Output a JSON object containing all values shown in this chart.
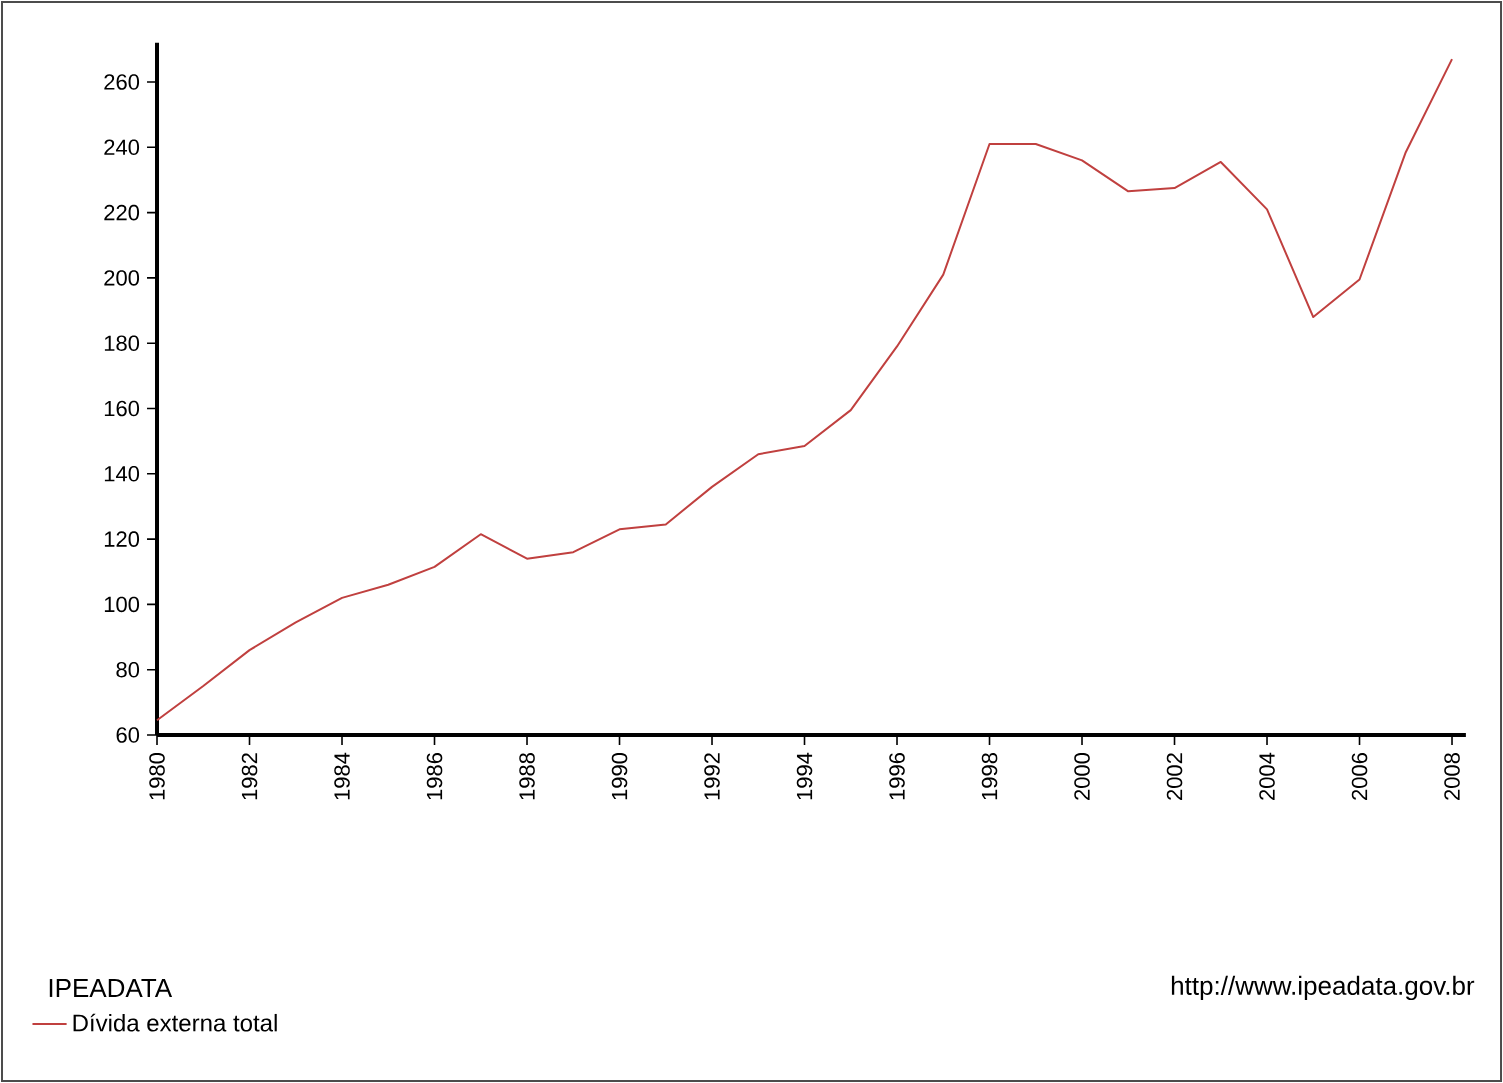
{
  "chart_data": {
    "type": "line",
    "x": [
      1980,
      1981,
      1982,
      1983,
      1984,
      1985,
      1986,
      1987,
      1988,
      1989,
      1990,
      1991,
      1992,
      1993,
      1994,
      1995,
      1996,
      1997,
      1998,
      1999,
      2000,
      2001,
      2002,
      2003,
      2004,
      2005,
      2006,
      2007,
      2008
    ],
    "series": [
      {
        "name": "Dívida externa total",
        "color": "#c0403f",
        "values": [
          64.5,
          75,
          86,
          94.5,
          102,
          106,
          111.5,
          121.5,
          114,
          116,
          123,
          124.5,
          136,
          146,
          148.5,
          159.5,
          179,
          201,
          241,
          241,
          236,
          226.5,
          227.5,
          235.5,
          221,
          188,
          199.5,
          238.5,
          267
        ]
      }
    ],
    "xlim": [
      1980,
      2008.3
    ],
    "ylim": [
      60,
      272
    ],
    "xticks": [
      1980,
      1982,
      1984,
      1986,
      1988,
      1990,
      1992,
      1994,
      1996,
      1998,
      2000,
      2002,
      2004,
      2006,
      2008
    ],
    "yticks": [
      60,
      80,
      100,
      120,
      140,
      160,
      180,
      200,
      220,
      240,
      260
    ],
    "legend": "bottom left",
    "grid": false,
    "marker": "none",
    "line_style": "solid",
    "annotations": [
      "IPEADATA",
      "http://www.ipeadata.gov.br"
    ]
  }
}
